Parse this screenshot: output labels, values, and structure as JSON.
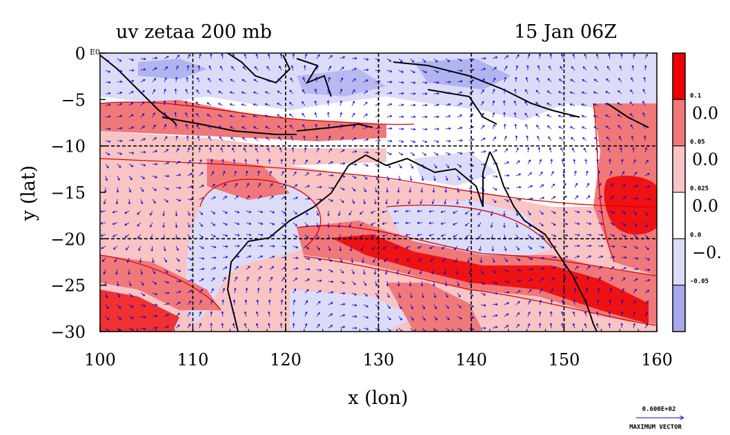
{
  "title_left": "uv zetaa 200 mb",
  "title_right": "15 Jan 06Z",
  "x_axis": {
    "label": "x (lon)",
    "ticks": [
      "100",
      "110",
      "120",
      "130",
      "140",
      "150",
      "160"
    ],
    "range": [
      100,
      160
    ]
  },
  "y_axis": {
    "label": "y (lat)",
    "ticks": [
      "0",
      "−5",
      "−10",
      "−15",
      "−20",
      "−25",
      "−30"
    ],
    "range": [
      -30,
      0
    ]
  },
  "corner_label": "E0",
  "colorbar": {
    "small_labels": [
      "0.1",
      "0.05",
      "0.025",
      "0.0",
      "-0.05"
    ],
    "large_labels": [
      "0.0",
      "0.0",
      "0.0",
      "−0."
    ],
    "colors": [
      "#ee0000",
      "#f07878",
      "#f8c4c4",
      "#ffffff",
      "#dcdcf8",
      "#a8aaec"
    ]
  },
  "vector_key": {
    "value": "0.600E+02",
    "caption": "MAXIMUM VECTOR"
  },
  "colors": {
    "vector": "#0000dd",
    "coast": "#000000",
    "contour": "#dd0000"
  }
}
